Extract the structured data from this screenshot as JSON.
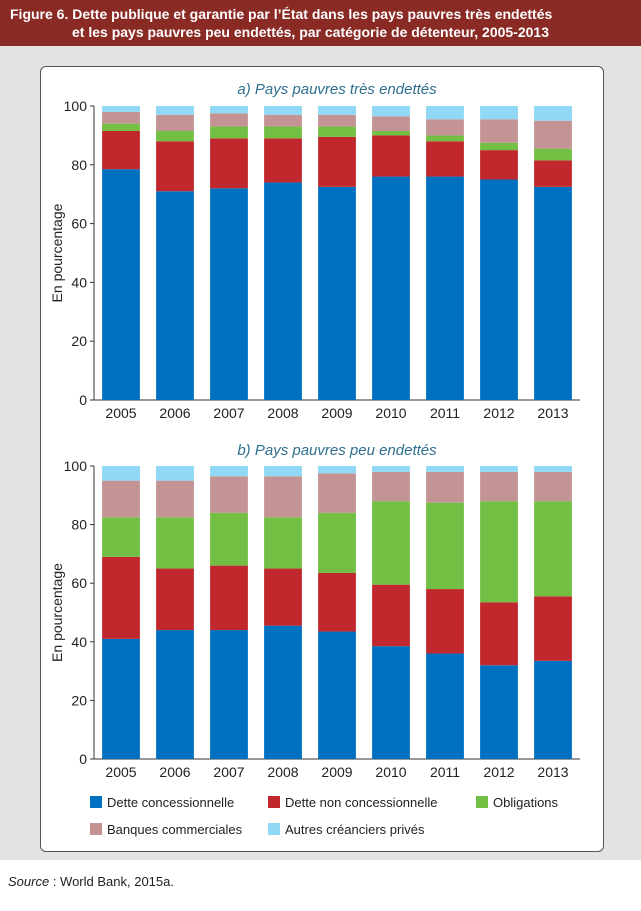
{
  "header": {
    "line1": "Figure 6. Dette publique et garantie par l’État dans les pays pauvres très endettés",
    "line2": "et les pays pauvres peu endettés, par catégorie de détenteur, 2005-2013"
  },
  "source": {
    "label": "Source",
    "text": " : World Bank, 2015a."
  },
  "colors": {
    "Dette concessionnelle": "#0070c0",
    "Dette non concessionnelle": "#c0282d",
    "Obligations": "#72bf44",
    "Banques commerciales": "#c49494",
    "Autres créanciers privés": "#8fd8f6"
  },
  "legend": [
    "Dette concessionnelle",
    "Dette non concessionnelle",
    "Obligations",
    "Banques commerciales",
    "Autres créanciers privés"
  ],
  "chart_data": [
    {
      "type": "bar",
      "stacked": true,
      "title": "a) Pays pauvres très endettés",
      "ylabel": "En pourcentage",
      "ylim": [
        0,
        100
      ],
      "yticks": [
        0,
        20,
        40,
        60,
        80,
        100
      ],
      "categories": [
        "2005",
        "2006",
        "2007",
        "2008",
        "2009",
        "2010",
        "2011",
        "2012",
        "2013"
      ],
      "series": [
        {
          "name": "Dette concessionnelle",
          "values": [
            78.5,
            71,
            72,
            74,
            72.5,
            76,
            76,
            75,
            72.5
          ]
        },
        {
          "name": "Dette non concessionnelle",
          "values": [
            13,
            17,
            17,
            15,
            17,
            14,
            12,
            10,
            9
          ]
        },
        {
          "name": "Obligations",
          "values": [
            2.5,
            3.5,
            4,
            4,
            3.5,
            1.5,
            2,
            2.5,
            4
          ]
        },
        {
          "name": "Banques commerciales",
          "values": [
            4,
            5.5,
            4.5,
            4,
            4,
            5,
            5.5,
            8,
            9.5
          ]
        },
        {
          "name": "Autres créanciers privés",
          "values": [
            2,
            3,
            2.5,
            3,
            3,
            3.5,
            4.5,
            4.5,
            5
          ]
        }
      ]
    },
    {
      "type": "bar",
      "stacked": true,
      "title": "b) Pays pauvres peu endettés",
      "ylabel": "En pourcentage",
      "ylim": [
        0,
        100
      ],
      "yticks": [
        0,
        20,
        40,
        60,
        80,
        100
      ],
      "categories": [
        "2005",
        "2006",
        "2007",
        "2008",
        "2009",
        "2010",
        "2011",
        "2012",
        "2013"
      ],
      "series": [
        {
          "name": "Dette concessionnelle",
          "values": [
            41,
            44,
            44,
            45.5,
            43.5,
            38.5,
            36,
            32,
            33.5
          ]
        },
        {
          "name": "Dette non concessionnelle",
          "values": [
            28,
            21,
            22,
            19.5,
            20,
            21,
            22,
            21.5,
            22
          ]
        },
        {
          "name": "Obligations",
          "values": [
            13.5,
            17.5,
            18,
            17.5,
            20.5,
            28.5,
            29.5,
            34.5,
            32.5
          ]
        },
        {
          "name": "Banques commerciales",
          "values": [
            12.5,
            12.5,
            12.5,
            14,
            13.5,
            10,
            10.5,
            10,
            10
          ]
        },
        {
          "name": "Autres créanciers privés",
          "values": [
            5,
            5,
            3.5,
            3.5,
            2.5,
            2,
            2,
            2,
            2
          ]
        }
      ]
    }
  ]
}
